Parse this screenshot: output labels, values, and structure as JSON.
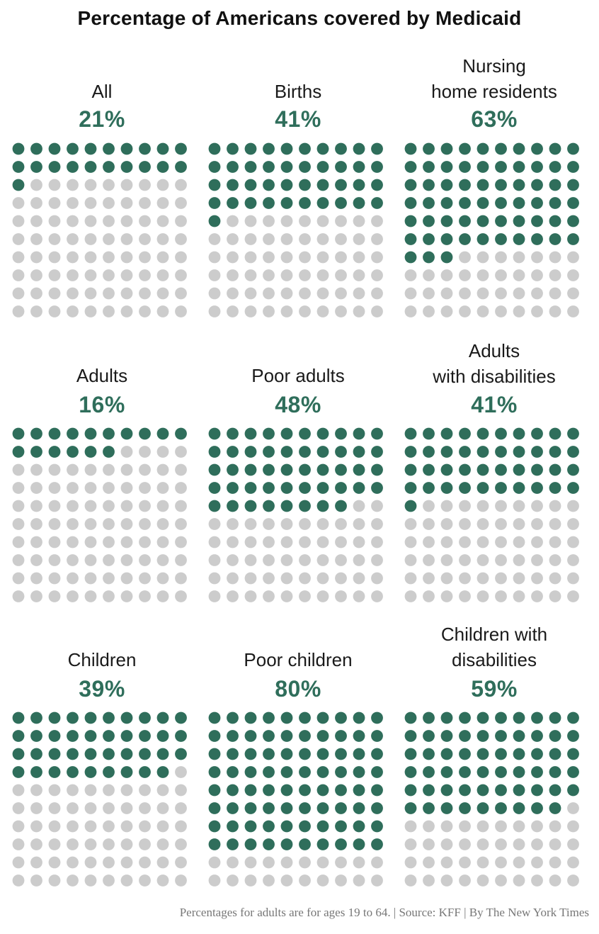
{
  "chart_data": {
    "type": "waffle",
    "title": "Percentage of Americans covered by Medicaid",
    "units": "dots per 100 people",
    "colors": {
      "filled": "#2f6e5b",
      "empty": "#cccccc",
      "pct_text": "#2f6e5b"
    },
    "panels": [
      {
        "label_lines": [
          "All"
        ],
        "percent_label": "21%",
        "value": 21
      },
      {
        "label_lines": [
          "Births"
        ],
        "percent_label": "41%",
        "value": 41
      },
      {
        "label_lines": [
          "Nursing",
          "home residents"
        ],
        "percent_label": "63%",
        "value": 63
      },
      {
        "label_lines": [
          "Adults"
        ],
        "percent_label": "16%",
        "value": 16
      },
      {
        "label_lines": [
          "Poor adults"
        ],
        "percent_label": "48%",
        "value": 48
      },
      {
        "label_lines": [
          "Adults",
          "with disabilities"
        ],
        "percent_label": "41%",
        "value": 41
      },
      {
        "label_lines": [
          "Children"
        ],
        "percent_label": "39%",
        "value": 39
      },
      {
        "label_lines": [
          "Poor children"
        ],
        "percent_label": "80%",
        "value": 80
      },
      {
        "label_lines": [
          "Children with",
          "disabilities"
        ],
        "percent_label": "59%",
        "value": 59
      }
    ],
    "footnote": "Percentages for adults are for ages 19 to 64. | Source: KFF | By The New York Times"
  }
}
